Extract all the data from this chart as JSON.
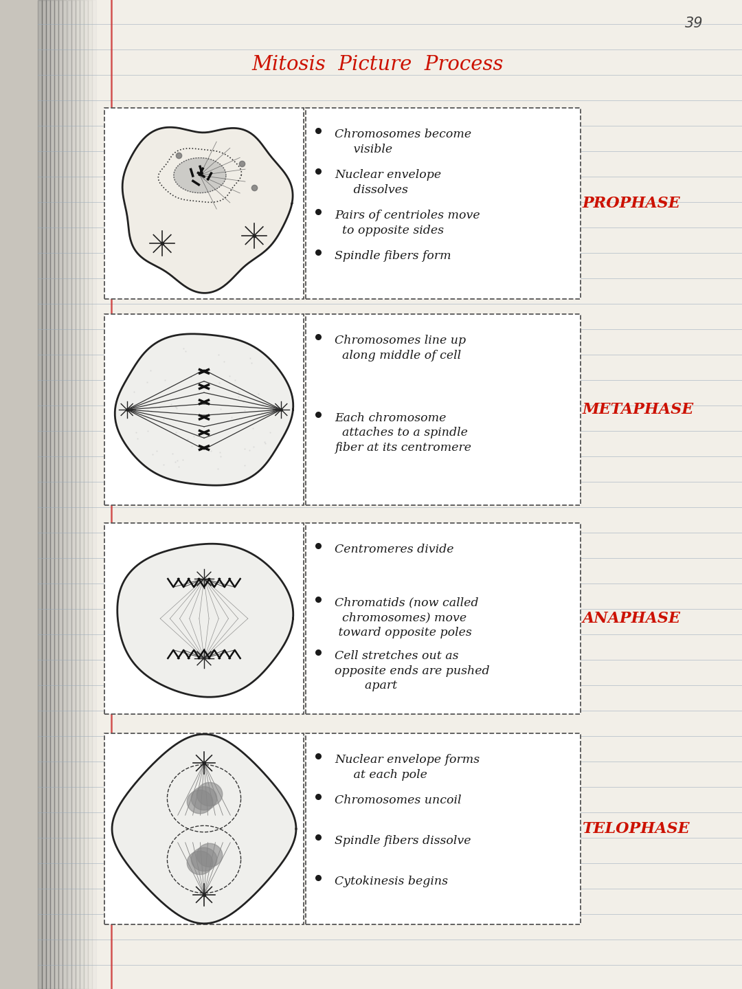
{
  "title": "Mitosis  Picture  Process",
  "page_number": "39",
  "bg_color": "#c8c4bc",
  "paper_color": "#e8e5de",
  "inner_paper_color": "#f2efe8",
  "title_color": "#cc1100",
  "label_color": "#cc1100",
  "line_color": "#9aabbb",
  "text_color": "#1a1a1a",
  "phases": [
    "PROPHASE",
    "METAPHASE",
    "ANAPHASE",
    "TELOPHASE"
  ],
  "bullets": [
    [
      "Chromosomes become\n     visible",
      "Nuclear envelope\n     dissolves",
      "Pairs of centrioles move\n  to opposite sides",
      "Spindle fibers form"
    ],
    [
      "Chromosomes line up\n  along middle of cell",
      "Each chromosome\n  attaches to a spindle\nfiber at its centromere"
    ],
    [
      "Centromeres divide",
      "Chromatids (now called\n  chromosomes) move\n toward opposite poles",
      "Cell stretches out as\nopposite ends are pushed\n        apart"
    ],
    [
      "Nuclear envelope forms\n     at each pole",
      "Chromosomes uncoil",
      "Spindle fibers dissolve",
      "Cytokinesis begins"
    ]
  ]
}
